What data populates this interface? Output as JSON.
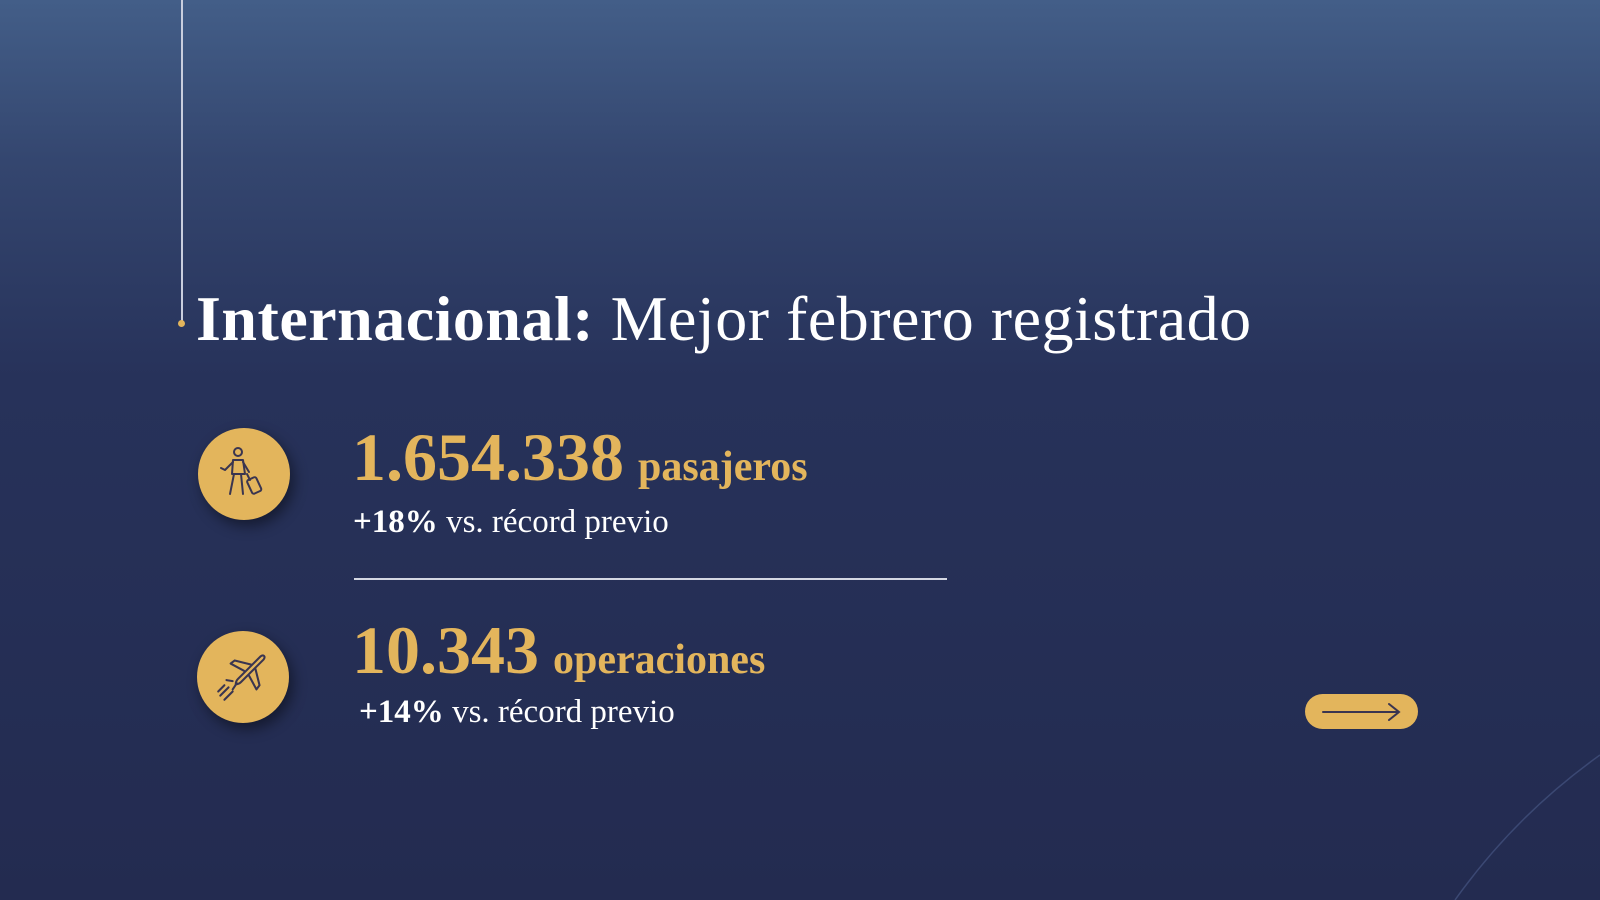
{
  "title": {
    "bold": "Internacional:",
    "rest": " Mejor febrero registrado"
  },
  "stats": [
    {
      "icon": "traveler-with-luggage-icon",
      "value": "1.654.338",
      "unit": "pasajeros",
      "change": "+18%",
      "change_text": " vs. récord previo"
    },
    {
      "icon": "airplane-icon",
      "value": "10.343",
      "unit": "operaciones",
      "change": "+14%",
      "change_text": " vs. récord previo"
    }
  ],
  "next_button": {
    "icon": "arrow-right-icon"
  },
  "colors": {
    "accent": "#e3b55c",
    "background": "#232b50",
    "background_top": "#435e88"
  }
}
